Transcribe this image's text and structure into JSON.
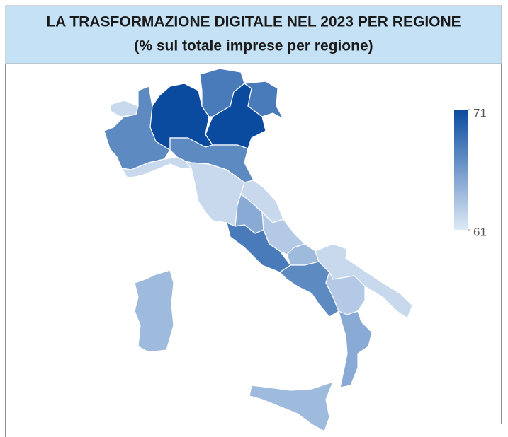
{
  "chart_data": {
    "type": "choropleth",
    "title": "LA TRASFORMAZIONE DIGITALE NEL 2023 PER REGIONE",
    "subtitle": "(% sul totale imprese per regione)",
    "values": [
      62,
      67,
      62,
      71,
      68,
      71,
      68,
      67,
      62,
      62,
      65,
      68,
      63,
      64,
      67,
      62,
      63,
      65,
      64,
      64
    ],
    "colorlim": [
      61,
      71
    ],
    "colorticks": [
      61,
      71
    ],
    "colors": [
      "#dde9f6",
      "#0a4ba0"
    ]
  }
}
